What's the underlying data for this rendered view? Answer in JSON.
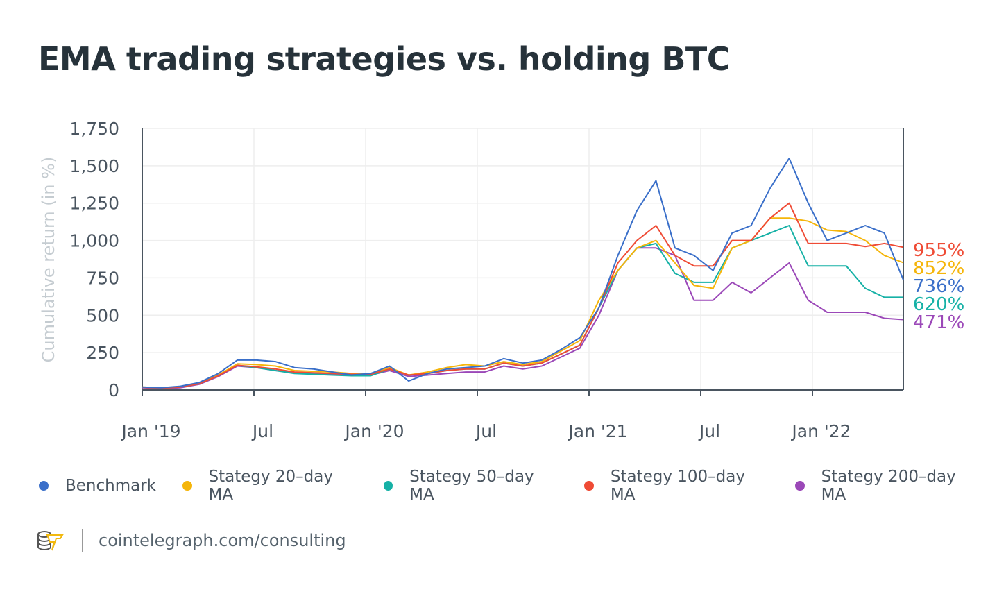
{
  "title": "EMA trading strategies vs. holding BTC",
  "footer": {
    "url": "cointelegraph.com/consulting",
    "logo": "cointelegraph-logo"
  },
  "chart_data": {
    "type": "line",
    "title": "EMA trading strategies vs. holding BTC",
    "xlabel": "",
    "ylabel": "Cumulative return (in %)",
    "ylim": [
      0,
      1750
    ],
    "yticks": [
      0,
      250,
      500,
      750,
      1000,
      1250,
      1500,
      1750
    ],
    "ytick_labels": [
      "0",
      "250",
      "500",
      "750",
      "1,000",
      "1,250",
      "1,500",
      "1,750"
    ],
    "xticks": [
      "Jan '19",
      "Jul",
      "Jan '20",
      "Jul",
      "Jan '21",
      "Jul",
      "Jan '22"
    ],
    "grid": true,
    "legend_placement": "bottom",
    "x": [
      "2019-01",
      "2019-02",
      "2019-03",
      "2019-04",
      "2019-05",
      "2019-06",
      "2019-07",
      "2019-08",
      "2019-09",
      "2019-10",
      "2019-11",
      "2019-12",
      "2020-01",
      "2020-02",
      "2020-03",
      "2020-04",
      "2020-05",
      "2020-06",
      "2020-07",
      "2020-08",
      "2020-09",
      "2020-10",
      "2020-11",
      "2020-12",
      "2021-01",
      "2021-02",
      "2021-03",
      "2021-04",
      "2021-05",
      "2021-06",
      "2021-07",
      "2021-08",
      "2021-09",
      "2021-10",
      "2021-11",
      "2021-12",
      "2022-01",
      "2022-02",
      "2022-03",
      "2022-04",
      "2022-05"
    ],
    "series": [
      {
        "name": "Benchmark",
        "color": "#3a6fc9",
        "end_label": "736%",
        "values": [
          20,
          15,
          25,
          50,
          110,
          200,
          200,
          190,
          150,
          140,
          120,
          100,
          110,
          160,
          60,
          110,
          140,
          150,
          160,
          210,
          180,
          200,
          270,
          350,
          550,
          900,
          1200,
          1400,
          950,
          900,
          800,
          1050,
          1100,
          1350,
          1550,
          1250,
          1000,
          1050,
          1100,
          1050,
          736
        ]
      },
      {
        "name": "Stategy 20–day MA",
        "color": "#f5b50a",
        "end_label": "852%",
        "values": [
          20,
          15,
          22,
          45,
          100,
          175,
          170,
          160,
          130,
          125,
          120,
          110,
          110,
          150,
          100,
          120,
          150,
          170,
          160,
          190,
          170,
          190,
          260,
          330,
          600,
          800,
          950,
          1000,
          850,
          700,
          680,
          950,
          1000,
          1150,
          1150,
          1130,
          1070,
          1060,
          1000,
          900,
          852
        ]
      },
      {
        "name": "Stategy 50–day MA",
        "color": "#16b1a6",
        "end_label": "620%",
        "values": [
          18,
          12,
          20,
          42,
          95,
          165,
          150,
          130,
          110,
          105,
          100,
          95,
          95,
          140,
          100,
          110,
          130,
          140,
          140,
          180,
          160,
          180,
          240,
          300,
          550,
          800,
          950,
          980,
          780,
          720,
          720,
          950,
          1000,
          1050,
          1100,
          830,
          830,
          830,
          680,
          620,
          620
        ]
      },
      {
        "name": "Stategy 100–day MA",
        "color": "#ef4b35",
        "end_label": "955%",
        "values": [
          18,
          12,
          20,
          42,
          95,
          165,
          155,
          140,
          120,
          115,
          110,
          105,
          105,
          140,
          100,
          110,
          130,
          140,
          140,
          180,
          160,
          180,
          240,
          300,
          550,
          850,
          1000,
          1100,
          900,
          830,
          830,
          1000,
          1000,
          1150,
          1250,
          980,
          980,
          980,
          960,
          980,
          955
        ]
      },
      {
        "name": "Stategy 200–day MA",
        "color": "#9b48b8",
        "end_label": "471%",
        "values": [
          15,
          10,
          15,
          38,
          90,
          160,
          150,
          130,
          115,
          110,
          105,
          100,
          100,
          130,
          90,
          100,
          110,
          120,
          120,
          160,
          140,
          160,
          220,
          280,
          500,
          800,
          950,
          950,
          900,
          600,
          600,
          720,
          650,
          750,
          850,
          600,
          520,
          520,
          520,
          480,
          471
        ]
      }
    ]
  }
}
